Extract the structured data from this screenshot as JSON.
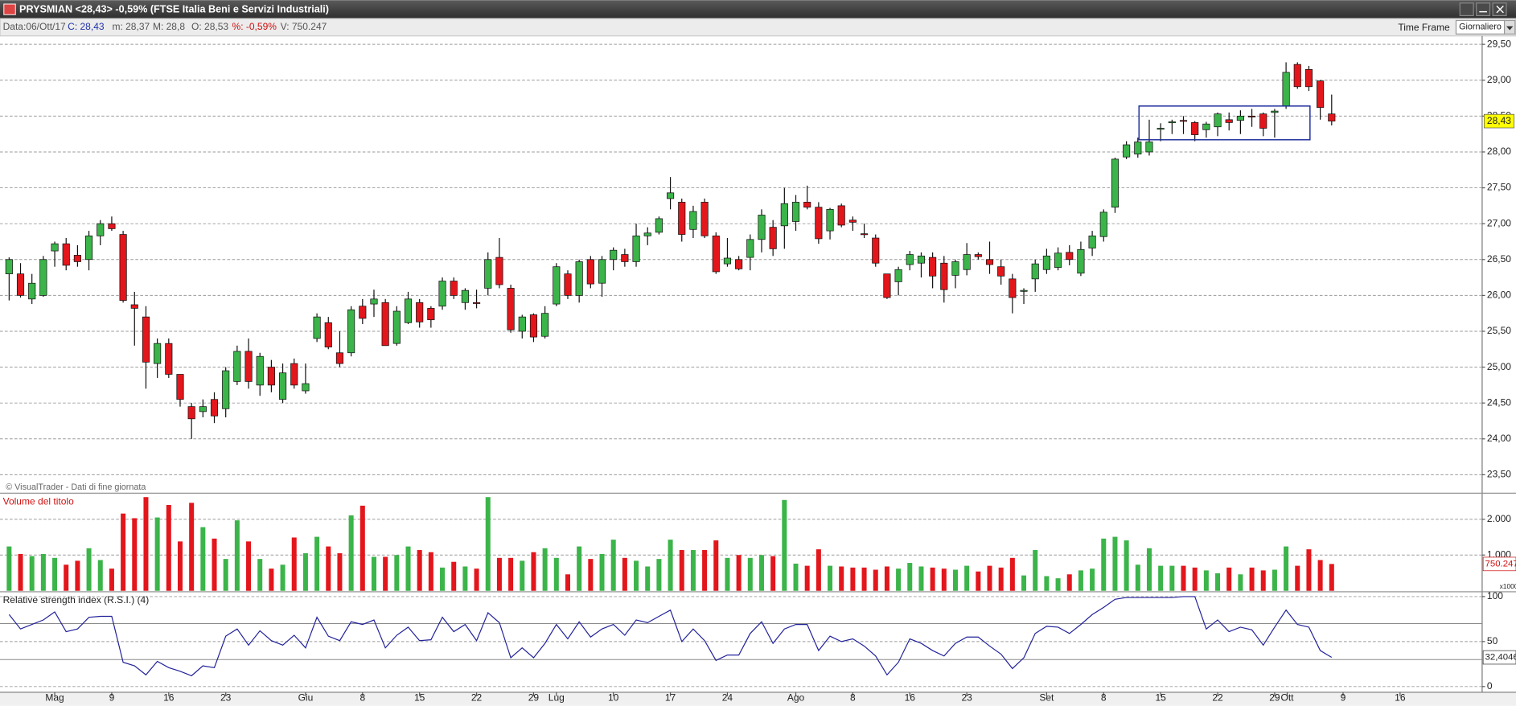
{
  "window": {
    "title": "PRYSMIAN <28,43> -0,59%  (FTSE Italia Beni e Servizi Industriali)"
  },
  "info_bar": {
    "date": "Data:06/Ott/17",
    "close": "C: 28,43",
    "low": "m: 28,37",
    "high": "M: 28,8",
    "open": "O: 28,53",
    "change": "%: -0,59%",
    "volume": "V: 750.247",
    "time_frame_label": "Time Frame",
    "time_frame": "Giornaliero"
  },
  "chart_data": [
    {
      "type": "candlestick",
      "note": "© VisualTrader - Dati di fine giornata",
      "up_color": "#3bb44a",
      "down_color": "#e3161c",
      "grid": true,
      "xlim": [
        -0.8,
        129.2
      ],
      "ylim": [
        23.27,
        29.55
      ],
      "yticks": [
        {
          "value": 23.5,
          "label": "23,50"
        },
        {
          "value": 24,
          "label": "24,00"
        },
        {
          "value": 24.5,
          "label": "24,50"
        },
        {
          "value": 25,
          "label": "25,00"
        },
        {
          "value": 25.5,
          "label": "25,50"
        },
        {
          "value": 26,
          "label": "26,00"
        },
        {
          "value": 26.5,
          "label": "26,50"
        },
        {
          "value": 27,
          "label": "27,00"
        },
        {
          "value": 27.5,
          "label": "27,50"
        },
        {
          "value": 28,
          "label": "28,00"
        },
        {
          "value": 28.5,
          "label": "28,50"
        },
        {
          "value": 29,
          "label": "29,00"
        },
        {
          "value": 29.5,
          "label": "29,50"
        }
      ],
      "last": {
        "value": 28.43,
        "label": "28,43"
      },
      "box": {
        "x": [
          99.1,
          114.1
        ],
        "y": [
          28.17,
          28.64
        ],
        "color": "#1c2a9a"
      },
      "x": [
        0,
        1,
        2,
        3,
        4,
        5,
        6,
        7,
        8,
        9,
        10,
        11,
        12,
        13,
        14,
        15,
        16,
        17,
        18,
        19,
        20,
        21,
        22,
        23,
        24,
        25,
        26,
        27,
        28,
        29,
        30,
        31,
        32,
        33,
        34,
        35,
        36,
        37,
        38,
        39,
        40,
        41,
        42,
        43,
        44,
        45,
        46,
        47,
        48,
        49,
        50,
        51,
        52,
        53,
        54,
        55,
        56,
        57,
        58,
        59,
        60,
        61,
        62,
        63,
        64,
        65,
        66,
        67,
        68,
        69,
        70,
        71,
        72,
        73,
        74,
        75,
        76,
        77,
        78,
        79,
        80,
        81,
        82,
        83,
        84,
        85,
        86,
        87,
        88,
        89,
        90,
        91,
        92,
        93,
        94,
        95,
        96,
        97,
        98,
        99,
        100,
        101,
        102,
        103,
        104,
        105,
        106,
        107,
        108,
        109,
        110,
        111,
        112,
        113,
        114,
        115,
        116
      ],
      "open": [
        26.3,
        26.3,
        25.95,
        26.0,
        26.62,
        26.72,
        26.56,
        26.5,
        26.83,
        27.0,
        26.85,
        25.87,
        25.7,
        25.05,
        25.33,
        24.9,
        24.45,
        24.38,
        24.55,
        24.42,
        24.8,
        25.22,
        24.75,
        25.0,
        24.55,
        25.05,
        24.67,
        25.4,
        25.62,
        25.2,
        25.2,
        25.85,
        25.88,
        25.9,
        25.33,
        25.62,
        25.9,
        25.82,
        25.85,
        26.2,
        25.9,
        25.9,
        26.1,
        26.53,
        26.1,
        25.5,
        25.73,
        25.43,
        25.88,
        26.3,
        26.0,
        26.5,
        26.17,
        26.5,
        26.57,
        26.47,
        26.83,
        26.88,
        27.35,
        27.3,
        26.92,
        27.3,
        26.83,
        26.44,
        26.5,
        26.53,
        26.78,
        26.95,
        26.97,
        27.03,
        27.3,
        27.23,
        26.9,
        27.25,
        27.05,
        26.86,
        26.8,
        26.3,
        26.19,
        26.43,
        26.45,
        26.53,
        26.45,
        26.28,
        26.36,
        26.57,
        26.5,
        26.4,
        26.23,
        26.06,
        26.23,
        26.36,
        26.39,
        26.6,
        26.31,
        26.66,
        26.82,
        27.23,
        27.93,
        27.97,
        28.0,
        28.32,
        28.41,
        28.44,
        28.41,
        28.31,
        28.35,
        28.45,
        28.44,
        28.5,
        28.53,
        28.55,
        28.64,
        29.22,
        29.15,
        28.99,
        28.53
      ],
      "high": [
        26.53,
        26.45,
        26.3,
        26.55,
        26.75,
        26.8,
        26.7,
        26.9,
        27.05,
        27.1,
        26.9,
        26.05,
        25.85,
        25.4,
        25.4,
        24.9,
        24.5,
        24.55,
        24.65,
        25.0,
        25.3,
        25.4,
        25.2,
        25.1,
        25.05,
        25.12,
        25.05,
        25.75,
        25.7,
        25.5,
        25.85,
        25.95,
        26.08,
        25.95,
        25.85,
        26.05,
        25.95,
        25.85,
        26.25,
        26.25,
        26.1,
        26.08,
        26.6,
        26.8,
        26.15,
        25.73,
        25.75,
        25.85,
        26.45,
        26.35,
        26.5,
        26.55,
        26.55,
        26.67,
        26.65,
        27.0,
        26.95,
        27.1,
        27.65,
        27.35,
        27.25,
        27.35,
        26.88,
        26.8,
        26.55,
        26.85,
        27.2,
        27.05,
        27.5,
        27.4,
        27.53,
        27.3,
        27.22,
        27.28,
        27.1,
        27.0,
        26.85,
        26.3,
        26.4,
        26.62,
        26.6,
        26.6,
        26.55,
        26.5,
        26.73,
        26.6,
        26.75,
        26.5,
        26.3,
        26.1,
        26.5,
        26.65,
        26.67,
        26.7,
        26.75,
        26.9,
        27.2,
        27.92,
        28.15,
        28.2,
        28.45,
        28.4,
        28.45,
        28.5,
        28.43,
        28.42,
        28.55,
        28.55,
        28.58,
        28.6,
        28.55,
        28.6,
        29.25,
        29.25,
        29.2,
        29.0,
        28.8
      ],
      "low": [
        25.93,
        25.97,
        25.88,
        25.98,
        26.4,
        26.35,
        26.4,
        26.35,
        26.7,
        26.9,
        25.9,
        25.3,
        24.7,
        24.85,
        24.85,
        24.45,
        24.0,
        24.3,
        24.22,
        24.3,
        24.75,
        24.7,
        24.6,
        24.65,
        24.5,
        24.7,
        24.63,
        25.35,
        25.25,
        25.0,
        25.15,
        25.6,
        25.7,
        25.3,
        25.3,
        25.6,
        25.55,
        25.55,
        25.8,
        25.95,
        25.8,
        25.82,
        26.0,
        26.1,
        25.48,
        25.4,
        25.35,
        25.4,
        25.85,
        25.95,
        25.9,
        26.1,
        25.98,
        26.35,
        26.4,
        26.4,
        26.7,
        26.85,
        27.2,
        26.75,
        26.8,
        26.8,
        26.3,
        26.4,
        26.35,
        26.35,
        26.6,
        26.55,
        26.65,
        26.9,
        27.2,
        26.72,
        26.78,
        26.95,
        26.9,
        26.8,
        26.4,
        25.95,
        26.0,
        26.35,
        26.25,
        26.1,
        25.9,
        26.1,
        26.28,
        26.5,
        26.3,
        26.15,
        25.75,
        25.88,
        26.05,
        26.3,
        26.35,
        26.42,
        26.27,
        26.55,
        26.75,
        27.15,
        27.9,
        27.92,
        27.95,
        28.15,
        28.25,
        28.25,
        28.15,
        28.2,
        28.22,
        28.3,
        28.25,
        28.35,
        28.22,
        28.2,
        28.6,
        28.88,
        28.85,
        28.45,
        28.37
      ],
      "close": [
        26.5,
        26.0,
        26.17,
        26.5,
        26.72,
        26.42,
        26.47,
        26.83,
        27.0,
        26.93,
        25.93,
        25.82,
        25.07,
        25.33,
        24.9,
        24.55,
        24.28,
        24.45,
        24.32,
        24.95,
        25.22,
        24.8,
        25.15,
        24.75,
        24.92,
        24.75,
        24.77,
        25.7,
        25.28,
        25.05,
        25.8,
        25.68,
        25.95,
        25.3,
        25.78,
        25.95,
        25.63,
        25.66,
        26.2,
        26.0,
        26.07,
        25.89,
        26.5,
        26.15,
        25.52,
        25.7,
        25.42,
        25.75,
        26.4,
        26.0,
        26.47,
        26.16,
        26.5,
        26.63,
        26.47,
        26.83,
        26.87,
        27.07,
        27.43,
        26.85,
        27.17,
        26.83,
        26.33,
        26.52,
        26.37,
        26.78,
        27.12,
        26.65,
        27.28,
        27.3,
        27.23,
        26.79,
        27.2,
        26.98,
        27.02,
        26.85,
        26.45,
        25.97,
        26.36,
        26.57,
        26.55,
        26.27,
        26.08,
        26.47,
        26.57,
        26.54,
        26.43,
        26.27,
        25.97,
        26.07,
        26.44,
        26.55,
        26.59,
        26.5,
        26.64,
        26.83,
        27.16,
        27.9,
        28.1,
        28.14,
        28.14,
        28.33,
        28.42,
        28.43,
        28.24,
        28.39,
        28.53,
        28.41,
        28.5,
        28.49,
        28.33,
        28.57,
        29.11,
        28.91,
        28.91,
        28.62,
        28.43
      ]
    },
    {
      "type": "bar",
      "title": "Volume del titolo",
      "unit_note": "x1000",
      "grid": true,
      "xlim": [
        -0.8,
        129.2
      ],
      "ylim": [
        0,
        2676
      ],
      "yticks": [
        {
          "value": 1000,
          "label": "1.000"
        },
        {
          "value": 2000,
          "label": "2.000"
        }
      ],
      "last": {
        "value": 750.247,
        "label": "750.247"
      },
      "x": [
        0,
        1,
        2,
        3,
        4,
        5,
        6,
        7,
        8,
        9,
        10,
        11,
        12,
        13,
        14,
        15,
        16,
        17,
        18,
        19,
        20,
        21,
        22,
        23,
        24,
        25,
        26,
        27,
        28,
        29,
        30,
        31,
        32,
        33,
        34,
        35,
        36,
        37,
        38,
        39,
        40,
        41,
        42,
        43,
        44,
        45,
        46,
        47,
        48,
        49,
        50,
        51,
        52,
        53,
        54,
        55,
        56,
        57,
        58,
        59,
        60,
        61,
        62,
        63,
        64,
        65,
        66,
        67,
        68,
        69,
        70,
        71,
        72,
        73,
        74,
        75,
        76,
        77,
        78,
        79,
        80,
        81,
        82,
        83,
        84,
        85,
        86,
        87,
        88,
        89,
        90,
        91,
        92,
        93,
        94,
        95,
        96,
        97,
        98,
        99,
        100,
        101,
        102,
        103,
        104,
        105,
        106,
        107,
        108,
        109,
        110,
        111,
        112,
        113,
        114,
        115,
        116
      ],
      "values": [
        1240,
        1030,
        970,
        1030,
        920,
        730,
        840,
        1190,
        860,
        620,
        2160,
        2030,
        2620,
        2050,
        2400,
        1380,
        2460,
        1780,
        1460,
        890,
        1970,
        1380,
        890,
        620,
        730,
        1490,
        1050,
        1510,
        1240,
        1050,
        2110,
        2380,
        950,
        950,
        1000,
        1240,
        1140,
        1080,
        650,
        810,
        680,
        620,
        2620,
        920,
        920,
        840,
        1080,
        1190,
        920,
        460,
        1240,
        890,
        1030,
        1430,
        920,
        840,
        680,
        890,
        1430,
        1140,
        1140,
        1140,
        1410,
        920,
        1000,
        920,
        1000,
        970,
        2540,
        760,
        700,
        1160,
        700,
        680,
        650,
        650,
        590,
        680,
        620,
        780,
        680,
        650,
        620,
        590,
        700,
        540,
        700,
        650,
        920,
        430,
        1140,
        410,
        350,
        460,
        570,
        620,
        1460,
        1510,
        1410,
        730,
        1190,
        700,
        700,
        700,
        650,
        570,
        490,
        650,
        460,
        650,
        570,
        590,
        1240,
        700,
        1160,
        860,
        750.247
      ]
    },
    {
      "type": "line",
      "title": "Relative strength index (R.S.I.) (4)",
      "color": "#22229a",
      "grid": true,
      "xlim": [
        -0.8,
        129.2
      ],
      "ylim": [
        -6.4,
        103.2
      ],
      "yticks": [
        0,
        50,
        100
      ],
      "levels": [
        30,
        70
      ],
      "last": {
        "value": 32.4046,
        "label": "32,4046"
      },
      "xticks": [
        {
          "value": 4,
          "label": "Mag"
        },
        {
          "value": 9,
          "label": "9"
        },
        {
          "value": 14,
          "label": "16"
        },
        {
          "value": 19,
          "label": "23"
        },
        {
          "value": 26,
          "label": "Giu"
        },
        {
          "value": 31,
          "label": "8"
        },
        {
          "value": 36,
          "label": "15"
        },
        {
          "value": 41,
          "label": "22"
        },
        {
          "value": 46,
          "label": "29"
        },
        {
          "value": 48,
          "label": "Lug"
        },
        {
          "value": 53,
          "label": "10"
        },
        {
          "value": 58,
          "label": "17"
        },
        {
          "value": 63,
          "label": "24"
        },
        {
          "value": 69,
          "label": "Ago"
        },
        {
          "value": 74,
          "label": "8"
        },
        {
          "value": 79,
          "label": "16"
        },
        {
          "value": 84,
          "label": "23"
        },
        {
          "value": 91,
          "label": "Set"
        },
        {
          "value": 96,
          "label": "8"
        },
        {
          "value": 101,
          "label": "15"
        },
        {
          "value": 106,
          "label": "22"
        },
        {
          "value": 111,
          "label": "29"
        },
        {
          "value": 112.1,
          "label": "Ott"
        },
        {
          "value": 117,
          "label": "9"
        },
        {
          "value": 122,
          "label": "16"
        }
      ],
      "x": [
        0,
        1,
        2,
        3,
        4,
        5,
        6,
        7,
        8,
        9,
        10,
        11,
        12,
        13,
        14,
        15,
        16,
        17,
        18,
        19,
        20,
        21,
        22,
        23,
        24,
        25,
        26,
        27,
        28,
        29,
        30,
        31,
        32,
        33,
        34,
        35,
        36,
        37,
        38,
        39,
        40,
        41,
        42,
        43,
        44,
        45,
        46,
        47,
        48,
        49,
        50,
        51,
        52,
        53,
        54,
        55,
        56,
        57,
        58,
        59,
        60,
        61,
        62,
        63,
        64,
        65,
        66,
        67,
        68,
        69,
        70,
        71,
        72,
        73,
        74,
        75,
        76,
        77,
        78,
        79,
        80,
        81,
        82,
        83,
        84,
        85,
        86,
        87,
        88,
        89,
        90,
        91,
        92,
        93,
        94,
        95,
        96,
        97,
        98,
        99,
        100,
        101,
        102,
        103,
        104,
        105,
        106,
        107,
        108,
        109,
        110,
        111,
        112,
        113,
        114,
        115,
        116
      ],
      "values": [
        80,
        64,
        69,
        74,
        83,
        61,
        64,
        77,
        78,
        78,
        27,
        23,
        13,
        28,
        21,
        17,
        12,
        23,
        21,
        56,
        64,
        46,
        62,
        51,
        46,
        57,
        43,
        77,
        56,
        51,
        72,
        69,
        74,
        43,
        57,
        66,
        51,
        52,
        77,
        61,
        69,
        51,
        82,
        71,
        32,
        43,
        32,
        48,
        69,
        53,
        72,
        55,
        64,
        69,
        57,
        74,
        71,
        78,
        85,
        50,
        64,
        51,
        29,
        35,
        35,
        59,
        72,
        48,
        64,
        69,
        69,
        40,
        56,
        50,
        53,
        45,
        34,
        13,
        27,
        53,
        48,
        40,
        34,
        48,
        55,
        55,
        45,
        36,
        20,
        32,
        59,
        67,
        66,
        59,
        69,
        80,
        88,
        97,
        99,
        99,
        99,
        99,
        99,
        100,
        100,
        64,
        74,
        61,
        66,
        63,
        46,
        66,
        85,
        69,
        66,
        40,
        32.4046
      ]
    }
  ]
}
